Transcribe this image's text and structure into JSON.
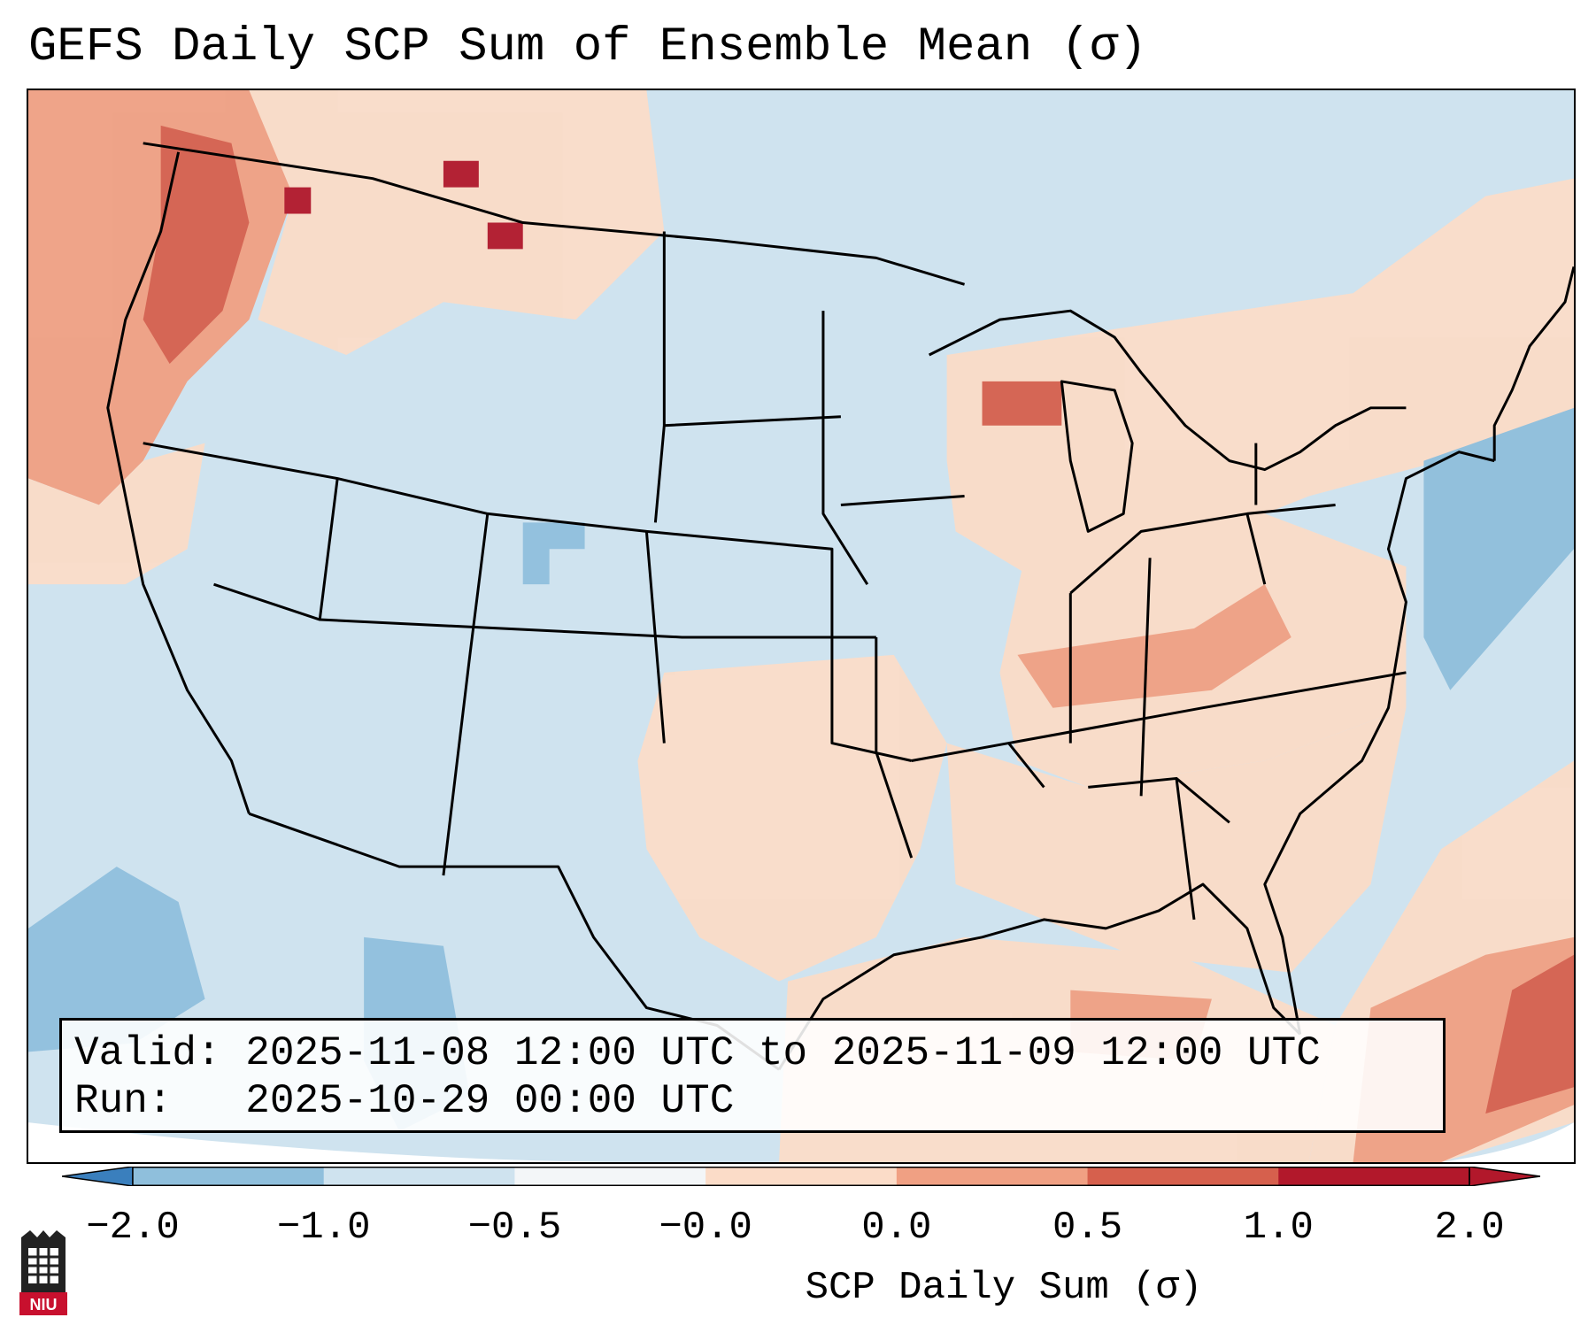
{
  "title": "GEFS Daily SCP Sum of Ensemble Mean (σ)",
  "info": {
    "valid_line": "Valid: 2025-11-08 12:00 UTC to 2025-11-09 12:00 UTC",
    "run_line": "Run:   2025-10-29 00:00 UTC"
  },
  "colorbar": {
    "label": "SCP Daily Sum (σ)",
    "ticks": [
      "−2.0",
      "−1.0",
      "−0.5",
      "−0.0",
      "0.0",
      "0.5",
      "1.0",
      "2.0"
    ],
    "colors": [
      "#3a7fbd",
      "#8fbfdc",
      "#cfe3ef",
      "#f3f6f8",
      "#fbdcc8",
      "#f0a083",
      "#d6604d",
      "#b2182b"
    ],
    "extend": "both"
  },
  "map": {
    "projection": "Lambert conformal (CONUS)",
    "background_color": "#cfe3ef",
    "anomaly_regions": [
      {
        "name": "pacific-northwest",
        "level": 1.0
      },
      {
        "name": "northern-rockies",
        "level": 0.5
      },
      {
        "name": "great-lakes",
        "level": 0.5
      },
      {
        "name": "ohio-tennessee-valley",
        "level": 0.5
      },
      {
        "name": "southern-plains",
        "level": 0.25
      },
      {
        "name": "southeast",
        "level": 0.25
      },
      {
        "name": "gulf-of-mexico",
        "level": 0.25
      },
      {
        "name": "western-atlantic",
        "level": 1.0
      },
      {
        "name": "eastern-pacific",
        "level": -0.5
      }
    ]
  },
  "logo": {
    "text": "NIU"
  }
}
